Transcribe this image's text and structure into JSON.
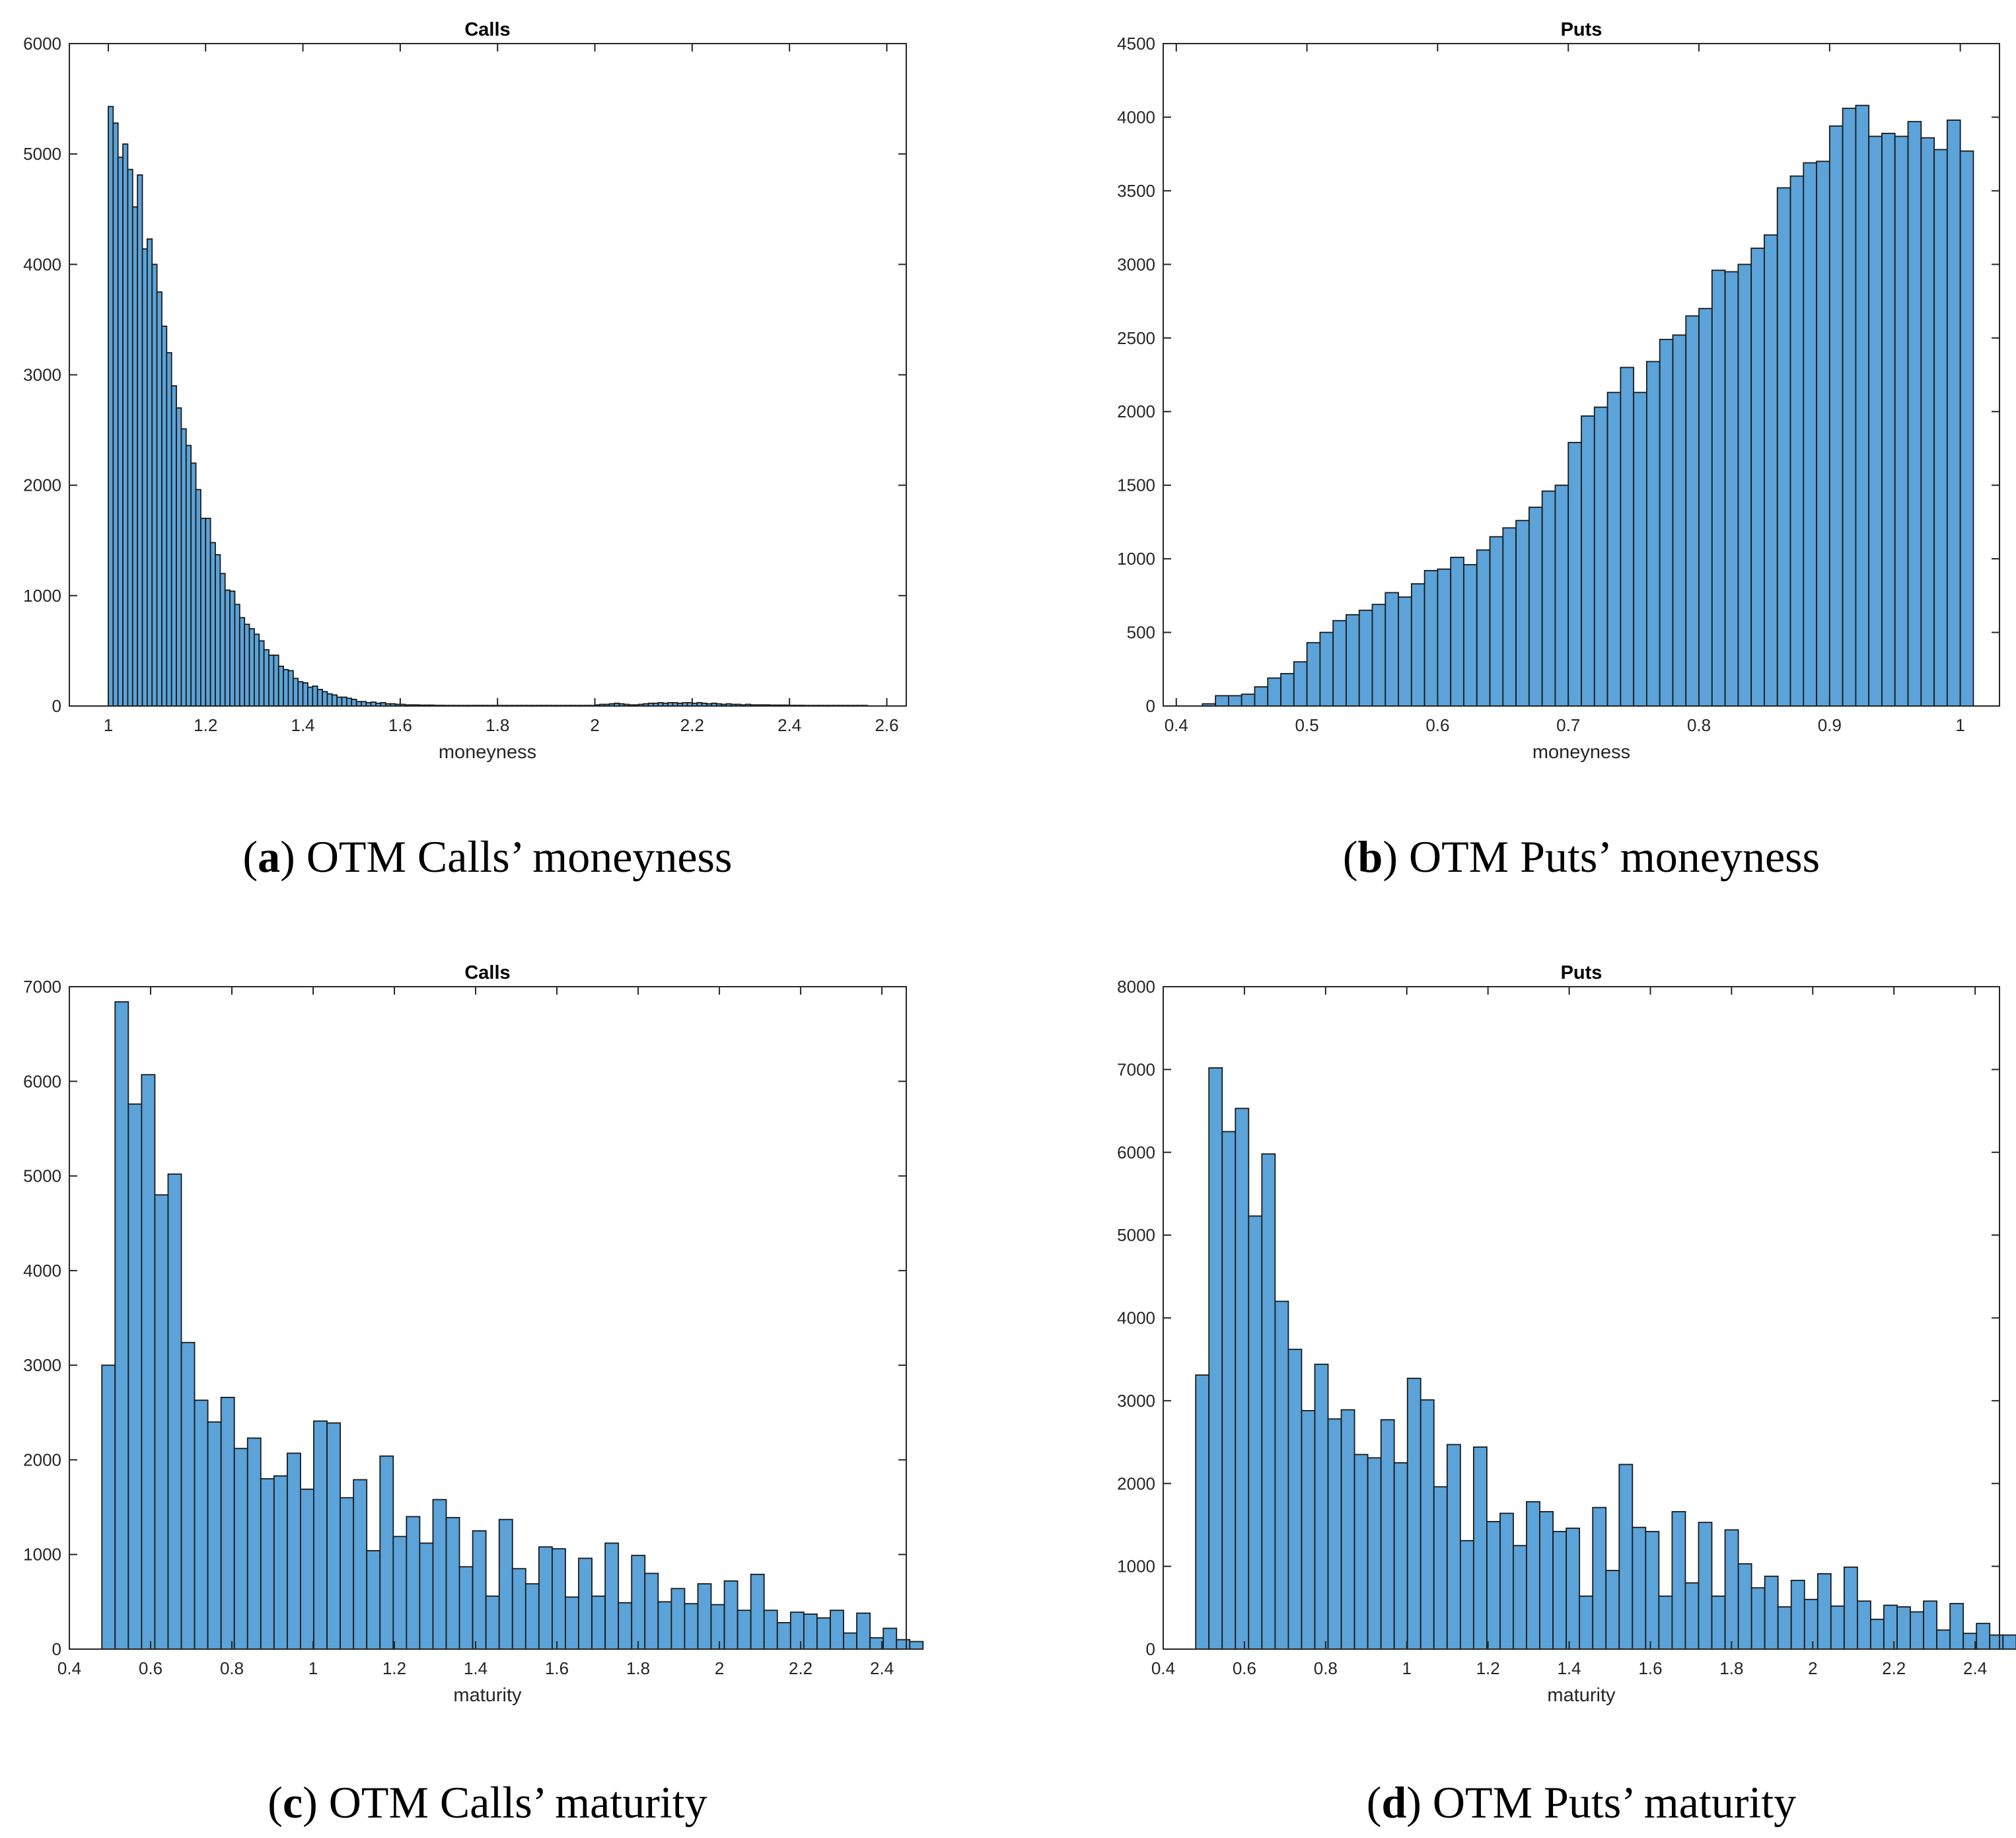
{
  "chart_data": [
    {
      "type": "bar",
      "panel_id": "a",
      "title": "Calls",
      "xlabel": "moneyness",
      "ylabel": "",
      "caption_label": "a",
      "caption_text": "OTM Calls’ moneyness",
      "xlim": [
        0.92,
        2.64
      ],
      "ylim": [
        0,
        6000
      ],
      "xticks": [
        1,
        1.2,
        1.4,
        1.6,
        1.8,
        2,
        2.2,
        2.4,
        2.6
      ],
      "xtick_labels": [
        "1",
        "1.2",
        "1.4",
        "1.6",
        "1.8",
        "2",
        "2.2",
        "2.4",
        "2.6"
      ],
      "yticks": [
        0,
        1000,
        2000,
        3000,
        4000,
        5000,
        6000
      ],
      "ytick_labels": [
        "0",
        "1000",
        "2000",
        "3000",
        "4000",
        "5000",
        "6000"
      ],
      "bin_start": 1.0,
      "bin_width": 0.01,
      "values": [
        5430,
        5280,
        4970,
        5090,
        4860,
        4520,
        4810,
        4140,
        4230,
        4000,
        3750,
        3440,
        3200,
        2900,
        2700,
        2510,
        2360,
        2200,
        1960,
        1700,
        1700,
        1480,
        1370,
        1200,
        1050,
        1040,
        920,
        800,
        740,
        700,
        650,
        590,
        510,
        460,
        460,
        360,
        330,
        320,
        250,
        220,
        210,
        170,
        180,
        150,
        130,
        110,
        100,
        80,
        80,
        70,
        60,
        40,
        40,
        30,
        35,
        25,
        30,
        20,
        20,
        15,
        15,
        10,
        10,
        10,
        8,
        8,
        8,
        6,
        6,
        5,
        5,
        5,
        5,
        5,
        5,
        5,
        5,
        5,
        5,
        5,
        5,
        5,
        5,
        5,
        5,
        5,
        5,
        5,
        5,
        5,
        5,
        5,
        5,
        5,
        5,
        5,
        5,
        5,
        5,
        5,
        10,
        15,
        15,
        20,
        25,
        20,
        15,
        10,
        10,
        15,
        20,
        25,
        25,
        30,
        25,
        30,
        30,
        25,
        30,
        30,
        25,
        30,
        25,
        20,
        25,
        20,
        15,
        20,
        15,
        15,
        10,
        15,
        10,
        10,
        10,
        10,
        8,
        8,
        8,
        8,
        6,
        6,
        6,
        5,
        5,
        5,
        5,
        5,
        5,
        5,
        5,
        5,
        5,
        5,
        5,
        5
      ]
    },
    {
      "type": "bar",
      "panel_id": "b",
      "title": "Puts",
      "xlabel": "moneyness",
      "ylabel": "",
      "caption_label": "b",
      "caption_text": "OTM Puts’ moneyness",
      "xlim": [
        0.39,
        1.03
      ],
      "ylim": [
        0,
        4500
      ],
      "xticks": [
        0.4,
        0.5,
        0.6,
        0.7,
        0.8,
        0.9,
        1
      ],
      "xtick_labels": [
        "0.4",
        "0.5",
        "0.6",
        "0.7",
        "0.8",
        "0.9",
        "1"
      ],
      "yticks": [
        0,
        500,
        1000,
        1500,
        2000,
        2500,
        3000,
        3500,
        4000,
        4500
      ],
      "ytick_labels": [
        "0",
        "500",
        "1000",
        "1500",
        "2000",
        "2500",
        "3000",
        "3500",
        "4000",
        "4500"
      ],
      "bin_start": 0.42,
      "bin_width": 0.01,
      "values": [
        15,
        70,
        70,
        80,
        130,
        190,
        220,
        300,
        430,
        500,
        580,
        620,
        650,
        690,
        770,
        740,
        830,
        920,
        930,
        1010,
        960,
        1060,
        1150,
        1210,
        1260,
        1350,
        1460,
        1500,
        1790,
        1970,
        2030,
        2130,
        2300,
        2130,
        2340,
        2490,
        2520,
        2650,
        2700,
        2960,
        2950,
        3000,
        3110,
        3200,
        3520,
        3600,
        3690,
        3700,
        3940,
        4060,
        4080,
        3870,
        3890,
        3870,
        3970,
        3860,
        3780,
        3980,
        3770
      ]
    },
    {
      "type": "bar",
      "panel_id": "c",
      "title": "Calls",
      "xlabel": "maturity",
      "ylabel": "",
      "caption_label": "c",
      "caption_text": "OTM Calls’ maturity",
      "xlim": [
        0.4,
        2.46
      ],
      "ylim": [
        0,
        7000
      ],
      "xticks": [
        0.4,
        0.6,
        0.8,
        1,
        1.2,
        1.4,
        1.6,
        1.8,
        2,
        2.2,
        2.4
      ],
      "xtick_labels": [
        "0.4",
        "0.6",
        "0.8",
        "1",
        "1.2",
        "1.4",
        "1.6",
        "1.8",
        "2",
        "2.2",
        "2.4"
      ],
      "yticks": [
        0,
        1000,
        2000,
        3000,
        4000,
        5000,
        6000,
        7000
      ],
      "ytick_labels": [
        "0",
        "1000",
        "2000",
        "3000",
        "4000",
        "5000",
        "6000",
        "7000"
      ],
      "bin_start": 0.48,
      "bin_width": 0.0326,
      "values": [
        3000,
        6840,
        5760,
        6070,
        4800,
        5020,
        3240,
        2630,
        2400,
        2660,
        2120,
        2230,
        1800,
        1830,
        2070,
        1690,
        2410,
        2390,
        1600,
        1790,
        1040,
        2040,
        1190,
        1400,
        1120,
        1580,
        1390,
        870,
        1250,
        560,
        1370,
        850,
        690,
        1080,
        1060,
        550,
        960,
        560,
        1120,
        490,
        990,
        800,
        500,
        640,
        480,
        690,
        470,
        720,
        410,
        790,
        410,
        280,
        390,
        370,
        330,
        410,
        170,
        380,
        120,
        220,
        100,
        80
      ]
    },
    {
      "type": "bar",
      "panel_id": "d",
      "title": "Puts",
      "xlabel": "maturity",
      "ylabel": "",
      "caption_label": "d",
      "caption_text": "OTM Puts’ maturity",
      "xlim": [
        0.4,
        2.46
      ],
      "ylim": [
        0,
        8000
      ],
      "xticks": [
        0.4,
        0.6,
        0.8,
        1,
        1.2,
        1.4,
        1.6,
        1.8,
        2,
        2.2,
        2.4
      ],
      "xtick_labels": [
        "0.4",
        "0.6",
        "0.8",
        "1",
        "1.2",
        "1.4",
        "1.6",
        "1.8",
        "2",
        "2.2",
        "2.4"
      ],
      "yticks": [
        0,
        1000,
        2000,
        3000,
        4000,
        5000,
        6000,
        7000,
        8000
      ],
      "ytick_labels": [
        "0",
        "1000",
        "2000",
        "3000",
        "4000",
        "5000",
        "6000",
        "7000",
        "8000"
      ],
      "bin_start": 0.48,
      "bin_width": 0.0326,
      "values": [
        3310,
        7020,
        6250,
        6530,
        5230,
        5980,
        4200,
        3620,
        2880,
        3440,
        2780,
        2890,
        2350,
        2310,
        2770,
        2250,
        3270,
        3010,
        1960,
        2470,
        1310,
        2440,
        1540,
        1640,
        1250,
        1780,
        1660,
        1420,
        1460,
        640,
        1710,
        950,
        2230,
        1470,
        1420,
        640,
        1660,
        800,
        1530,
        640,
        1440,
        1030,
        740,
        880,
        510,
        830,
        600,
        910,
        520,
        990,
        580,
        360,
        530,
        510,
        450,
        580,
        230,
        550,
        190,
        310,
        170,
        170
      ]
    }
  ]
}
